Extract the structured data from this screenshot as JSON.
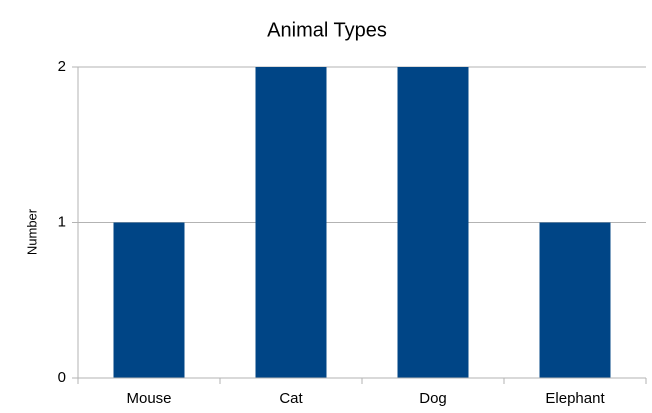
{
  "chart_data": {
    "type": "bar",
    "title": "Animal Types",
    "y_label": "Number",
    "categories": [
      "Mouse",
      "Cat",
      "Dog",
      "Elephant"
    ],
    "values": [
      1,
      2,
      2,
      1
    ],
    "color": "#004586",
    "ylim": [
      0,
      2
    ],
    "yticks": [
      0,
      1,
      2
    ],
    "grid": true
  }
}
